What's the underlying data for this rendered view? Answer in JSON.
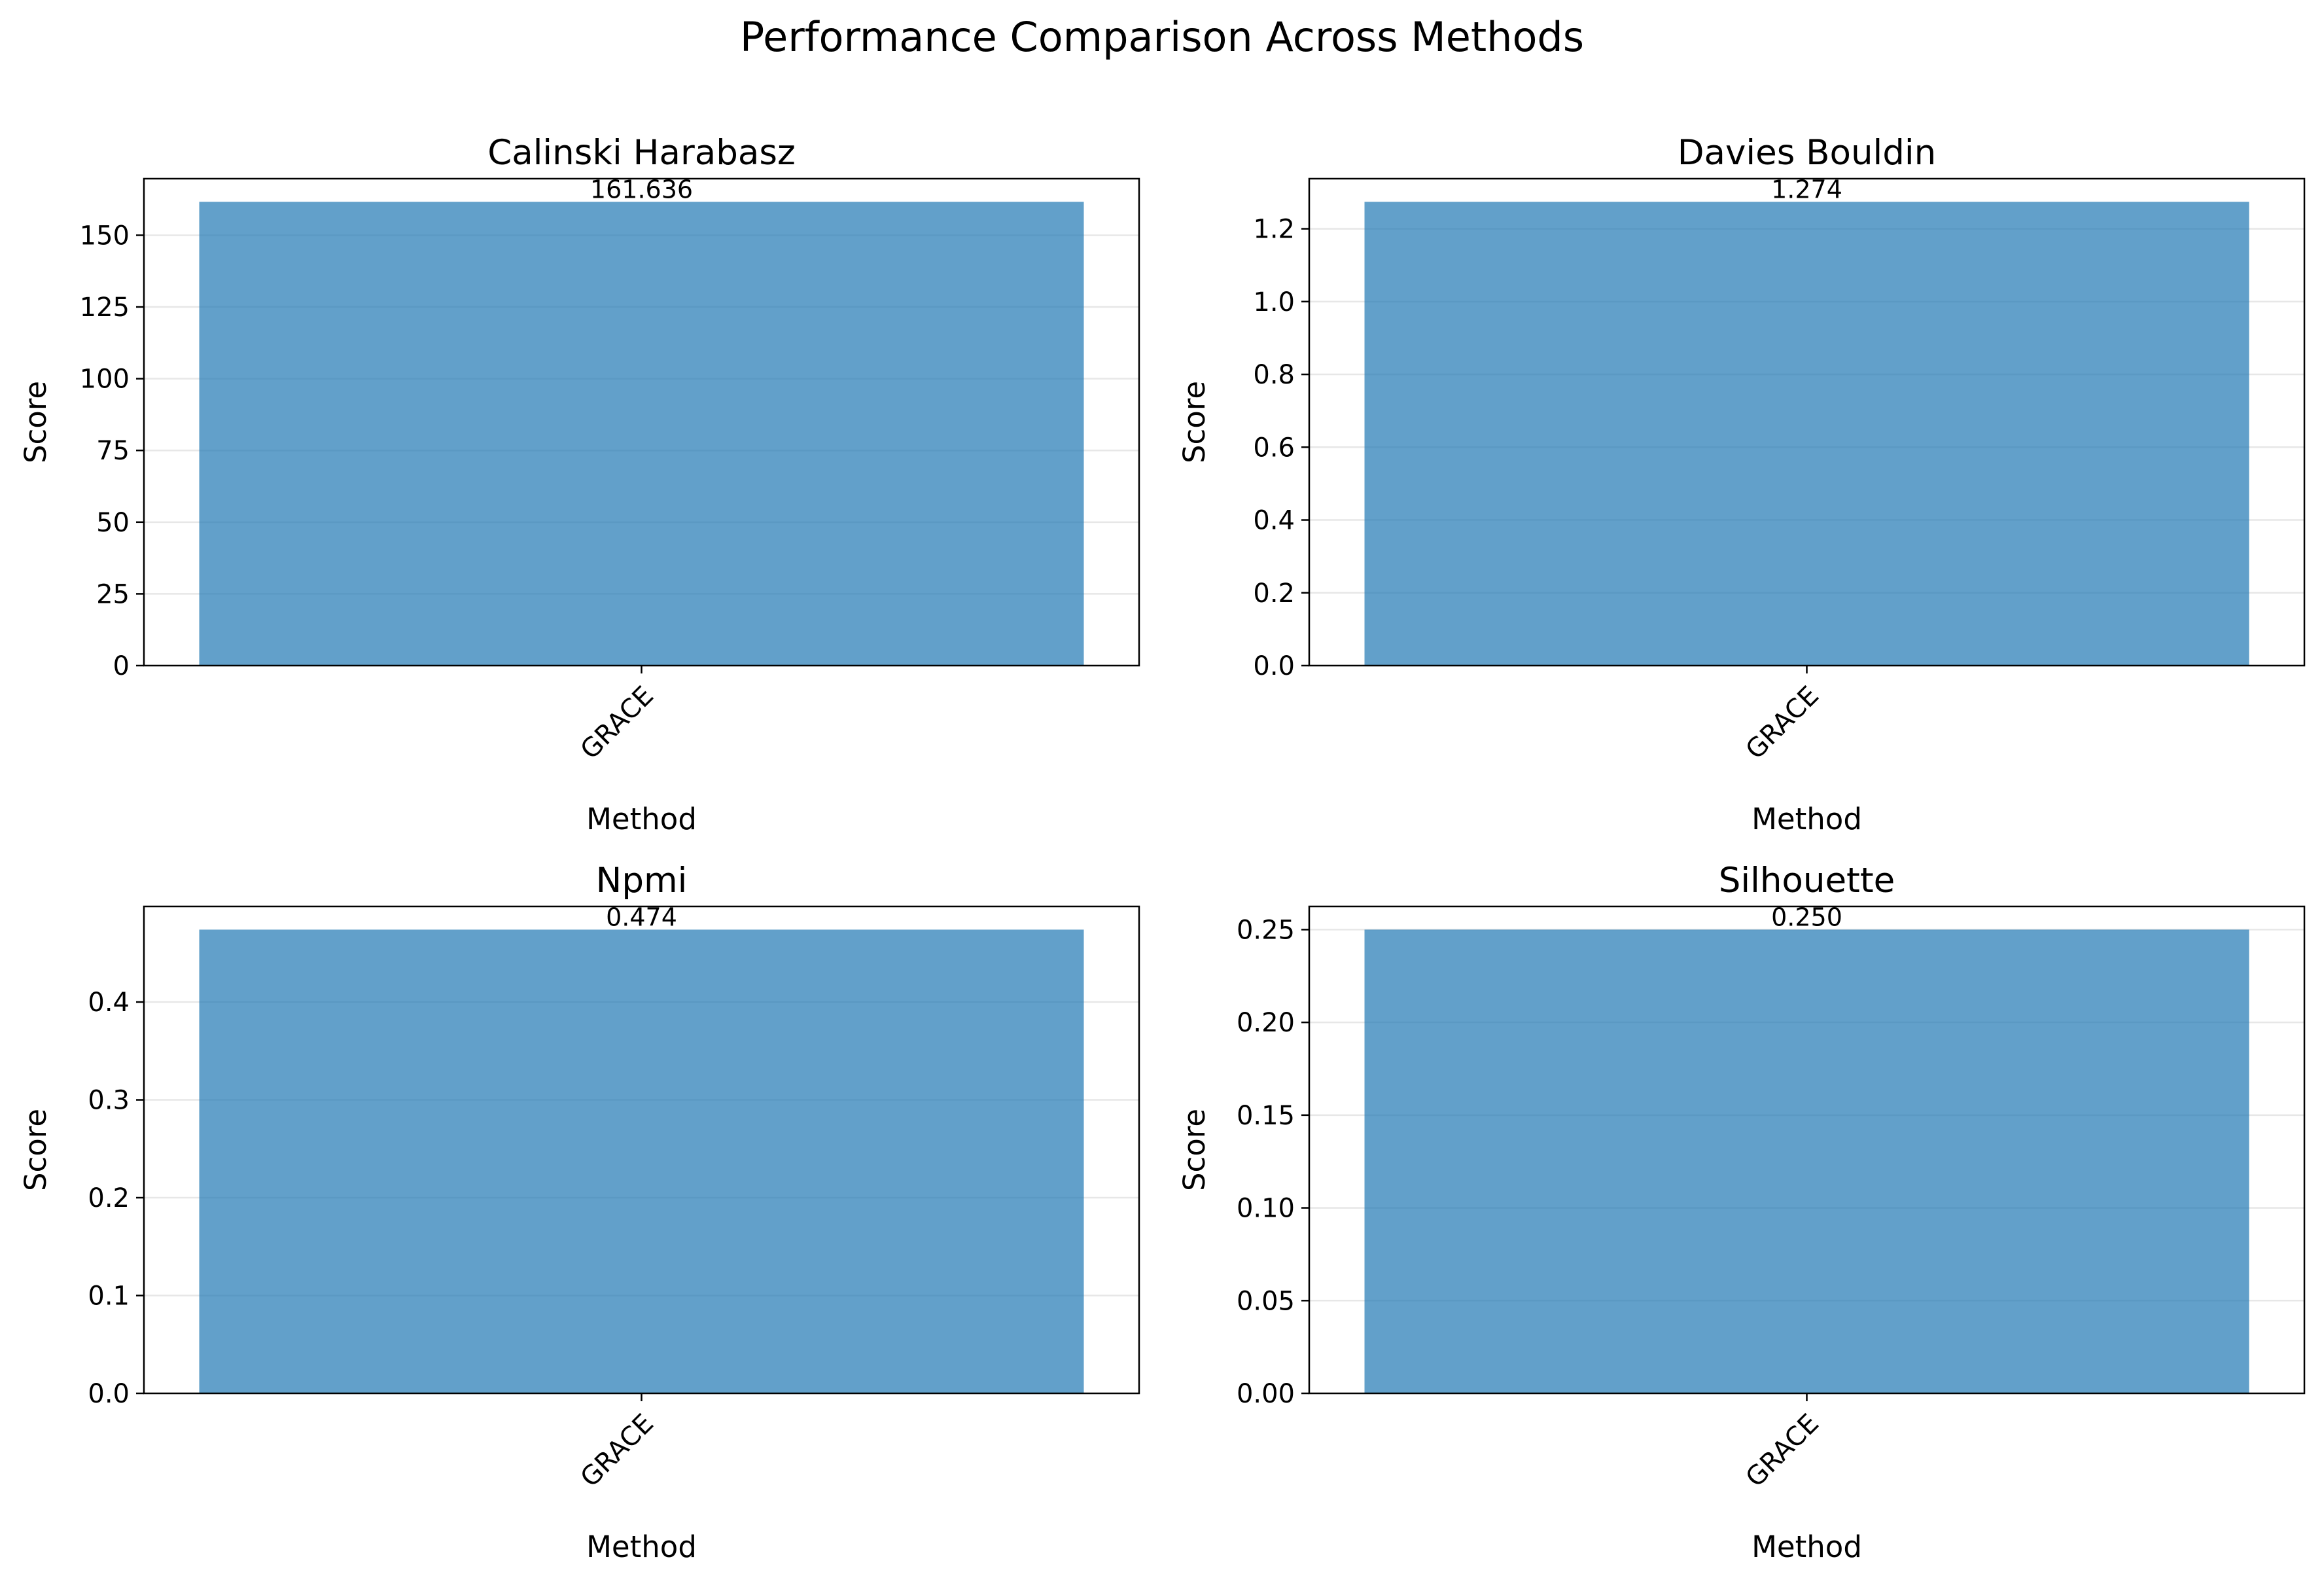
{
  "figure_title": "Performance Comparison Across Methods",
  "colors": {
    "bar": "#1f77b4",
    "bar_alpha": 0.7,
    "grid": "#b0b0b0"
  },
  "chart_data": [
    {
      "type": "bar",
      "title": "Calinski Harabasz",
      "categories": [
        "GRACE"
      ],
      "values": [
        161.636
      ],
      "value_labels": [
        "161.636"
      ],
      "xlabel": "Method",
      "ylabel": "Score",
      "ylim": [
        0,
        169.72
      ],
      "yticks": [
        0,
        25,
        50,
        75,
        100,
        125,
        150
      ],
      "ytick_labels": [
        "0",
        "25",
        "50",
        "75",
        "100",
        "125",
        "150"
      ],
      "grid": true
    },
    {
      "type": "bar",
      "title": "Davies Bouldin",
      "categories": [
        "GRACE"
      ],
      "values": [
        1.274
      ],
      "value_labels": [
        "1.274"
      ],
      "xlabel": "Method",
      "ylabel": "Score",
      "ylim": [
        0,
        1.3377
      ],
      "yticks": [
        0,
        0.2,
        0.4,
        0.6,
        0.8,
        1.0,
        1.2
      ],
      "ytick_labels": [
        "0.0",
        "0.2",
        "0.4",
        "0.6",
        "0.8",
        "1.0",
        "1.2"
      ],
      "grid": true
    },
    {
      "type": "bar",
      "title": "Npmi",
      "categories": [
        "GRACE"
      ],
      "values": [
        0.474
      ],
      "value_labels": [
        "0.474"
      ],
      "xlabel": "Method",
      "ylabel": "Score",
      "ylim": [
        0,
        0.4977
      ],
      "yticks": [
        0,
        0.1,
        0.2,
        0.3,
        0.4
      ],
      "ytick_labels": [
        "0.0",
        "0.1",
        "0.2",
        "0.3",
        "0.4"
      ],
      "grid": true
    },
    {
      "type": "bar",
      "title": "Silhouette",
      "categories": [
        "GRACE"
      ],
      "values": [
        0.25
      ],
      "value_labels": [
        "0.250"
      ],
      "xlabel": "Method",
      "ylabel": "Score",
      "ylim": [
        0,
        0.2625
      ],
      "yticks": [
        0,
        0.05,
        0.1,
        0.15,
        0.2,
        0.25
      ],
      "ytick_labels": [
        "0.00",
        "0.05",
        "0.10",
        "0.15",
        "0.20",
        "0.25"
      ],
      "grid": true
    }
  ]
}
